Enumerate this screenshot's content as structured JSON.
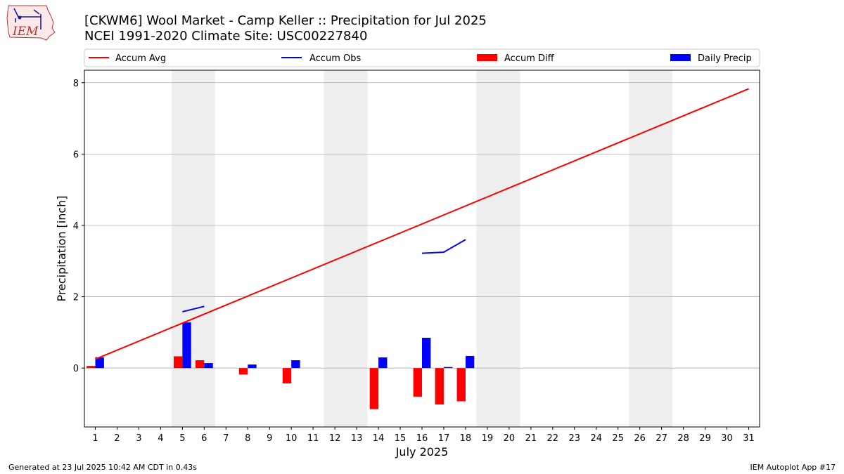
{
  "logo": {
    "text": "IEM"
  },
  "footer": {
    "left": "Generated at 23 Jul 2025 10:42 AM CDT in 0.43s",
    "right": "IEM Autoplot App #17"
  },
  "colors": {
    "accum_avg": "#ff0000",
    "accum_obs": "#0000ff",
    "accum_diff": "#ff0000",
    "daily_precip": "#0000ff",
    "weekend_band": "#eeeeee",
    "grid": "#b0b0b0"
  },
  "chart_data": {
    "type": "bar+line",
    "title": "[CKWM6] Wool Market - Camp Keller :: Precipitation for Jul 2025",
    "subtitle": "NCEI 1991-2020 Climate Site: USC00227840",
    "xlabel": "July 2025",
    "ylabel": "Precipitation [inch]",
    "xlim": [
      0.5,
      31.5
    ],
    "ylim": [
      -1.65,
      8.35
    ],
    "yticks": [
      0,
      2,
      4,
      6,
      8
    ],
    "x_ticks": [
      1,
      2,
      3,
      4,
      5,
      6,
      7,
      8,
      9,
      10,
      11,
      12,
      13,
      14,
      15,
      16,
      17,
      18,
      19,
      20,
      21,
      22,
      23,
      24,
      25,
      26,
      27,
      28,
      29,
      30,
      31
    ],
    "grid": "horizontal",
    "weekend_bands": [
      [
        4.5,
        6.5
      ],
      [
        11.5,
        13.5
      ],
      [
        18.5,
        20.5
      ],
      [
        25.5,
        27.5
      ]
    ],
    "legend": [
      {
        "label": "Accum Avg",
        "kind": "line",
        "color": "#ff0000"
      },
      {
        "label": "Accum Obs",
        "kind": "line",
        "color": "#0000ff"
      },
      {
        "label": "Accum Diff",
        "kind": "bar",
        "color": "#ff0000"
      },
      {
        "label": "Daily Precip",
        "kind": "bar",
        "color": "#0000ff"
      }
    ],
    "legend_placement": "top, above plot",
    "accum_avg": {
      "x": [
        1,
        31
      ],
      "y": [
        0.25,
        7.83
      ]
    },
    "accum_obs_segments": [
      {
        "x": [
          5,
          6
        ],
        "y": [
          1.58,
          1.73
        ]
      },
      {
        "x": [
          16,
          17,
          18
        ],
        "y": [
          3.22,
          3.25,
          3.6
        ]
      }
    ],
    "accum_diff": {
      "days": [
        1,
        5,
        6,
        8,
        10,
        14,
        16,
        17,
        18
      ],
      "values": [
        0.06,
        0.33,
        0.22,
        -0.18,
        -0.43,
        -1.15,
        -0.8,
        -1.02,
        -0.93
      ]
    },
    "daily_precip": {
      "days": [
        1,
        5,
        6,
        8,
        10,
        14,
        16,
        17,
        18
      ],
      "values": [
        0.3,
        1.28,
        0.14,
        0.1,
        0.22,
        0.3,
        0.85,
        0.03,
        0.34
      ]
    }
  }
}
